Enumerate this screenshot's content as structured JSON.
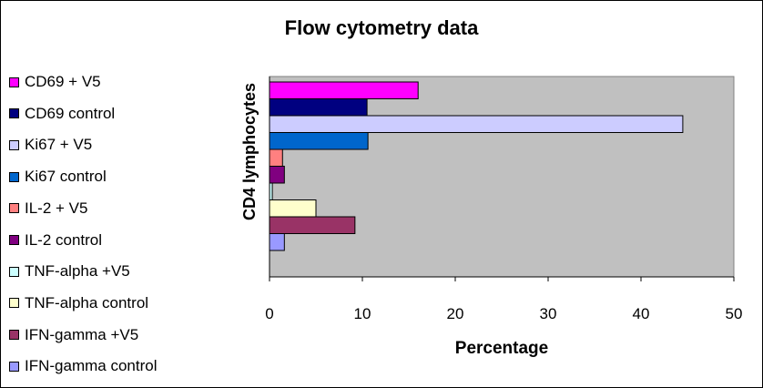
{
  "chart_data": {
    "type": "bar",
    "orientation": "horizontal",
    "title": "Flow cytometry data",
    "xlabel": "Percentage",
    "ylabel": "CD4 lymphocytes",
    "xlim": [
      0,
      50
    ],
    "xticks": [
      0,
      10,
      20,
      30,
      40,
      50
    ],
    "grid": false,
    "legend_position": "left",
    "plot_background": "#C0C0C0",
    "series": [
      {
        "name": "CD69 + V5",
        "value": 16,
        "color": "#FF00FF"
      },
      {
        "name": "CD69 control",
        "value": 10.5,
        "color": "#000080"
      },
      {
        "name": "Ki67 + V5",
        "value": 44.5,
        "color": "#CCCCFF"
      },
      {
        "name": "Ki67 control",
        "value": 10.6,
        "color": "#0066CC"
      },
      {
        "name": "IL-2 + V5",
        "value": 1.4,
        "color": "#FF8080"
      },
      {
        "name": "IL-2 control",
        "value": 1.6,
        "color": "#800080"
      },
      {
        "name": "TNF-alpha +V5",
        "value": 0.3,
        "color": "#CCFFFF"
      },
      {
        "name": "TNF-alpha control",
        "value": 5,
        "color": "#FFFFCC"
      },
      {
        "name": "IFN-gamma +V5",
        "value": 9.2,
        "color": "#993366"
      },
      {
        "name": "IFN-gamma control",
        "value": 1.6,
        "color": "#9999FF"
      }
    ]
  }
}
